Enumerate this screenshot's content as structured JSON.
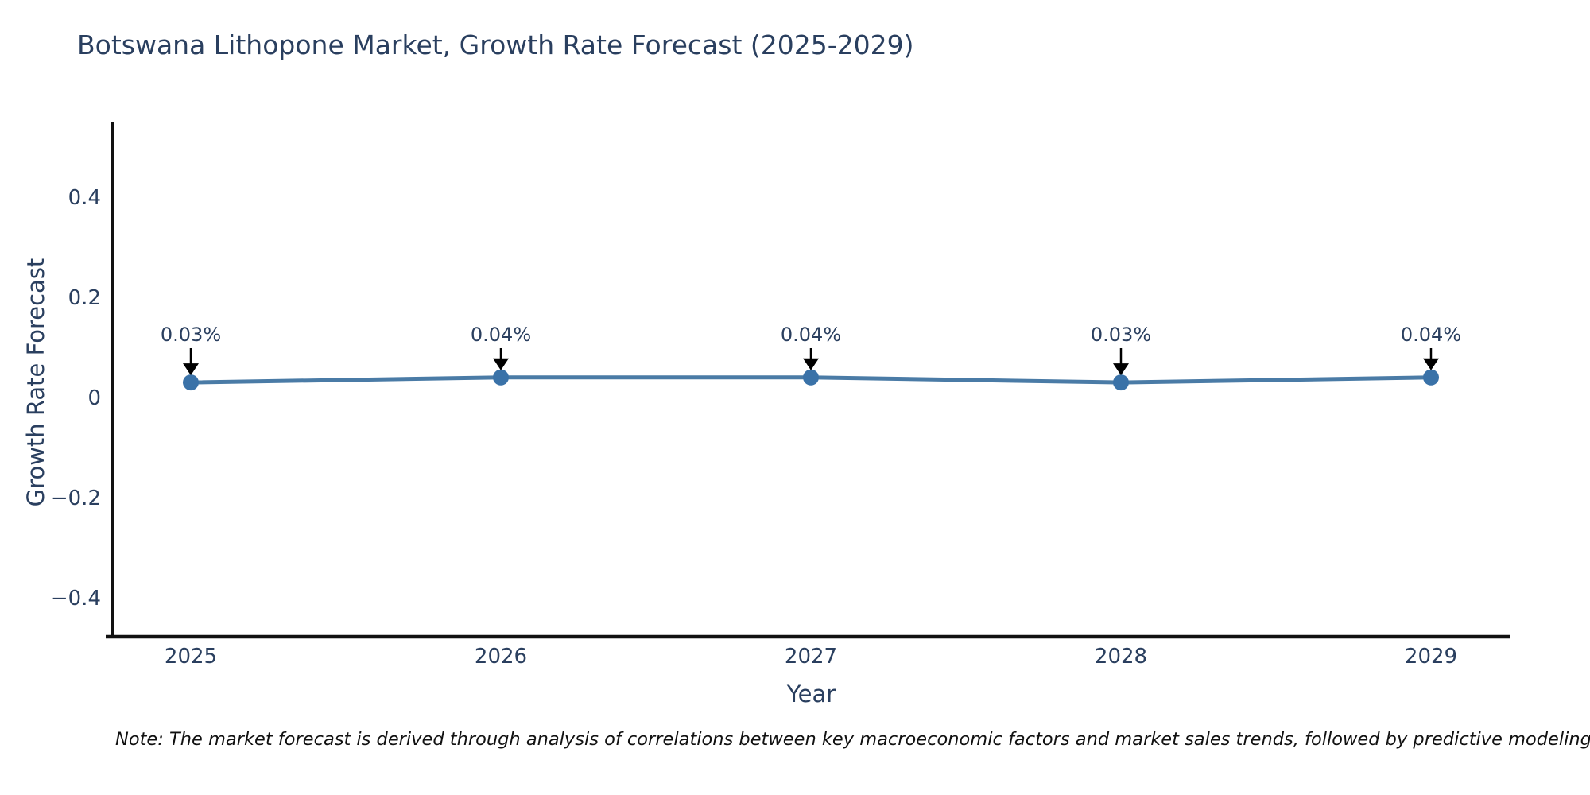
{
  "title": "Botswana Lithopone Market, Growth Rate Forecast (2025-2029)",
  "note": "Note: The market forecast is derived through analysis of correlations between key macroeconomic factors and market sales trends, followed by predictive modeling to project future sales.",
  "colors": {
    "background": "#ffffff",
    "title_text": "#2a3f5f",
    "axis_text": "#2a3f5f",
    "axis_line": "#111111",
    "series_line": "#4a7ba6",
    "marker_fill": "#3a72a8",
    "annotation_text": "#2a3f5f",
    "arrow": "#000000",
    "note_text": "#111111"
  },
  "chart_data": {
    "type": "line",
    "title": "Botswana Lithopone Market, Growth Rate Forecast (2025-2029)",
    "xlabel": "Year",
    "ylabel": "Growth Rate Forecast",
    "categories": [
      "2025",
      "2026",
      "2027",
      "2028",
      "2029"
    ],
    "values": [
      0.03,
      0.04,
      0.04,
      0.03,
      0.04
    ],
    "point_labels": [
      "0.03%",
      "0.04%",
      "0.04%",
      "0.03%",
      "0.04%"
    ],
    "ytick_labels": [
      "0.4",
      "0.2",
      "0",
      "−0.2",
      "−0.4"
    ],
    "ytick_values": [
      0.4,
      0.2,
      0,
      -0.2,
      -0.4
    ],
    "ylim": [
      -0.48,
      0.55
    ],
    "grid": false,
    "legend": false,
    "annotation_style": "value labels with downward arrows to markers"
  }
}
